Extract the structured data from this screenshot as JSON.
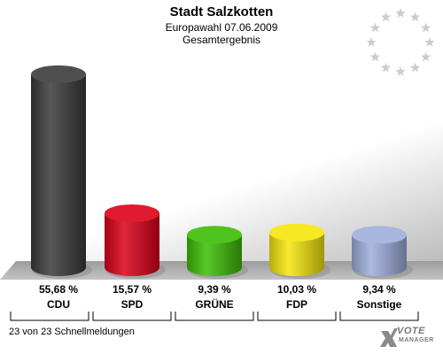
{
  "header": {
    "title": "Stadt Salzkotten",
    "subtitle": "Europawahl 07.06.2009",
    "subsubtitle": "Gesamtergebnis"
  },
  "footer": {
    "reports": "23 von 23 Schnellmeldungen"
  },
  "logo": {
    "line1": "VOTE",
    "line2": "MANAGER",
    "icon": "votemanager-x-icon"
  },
  "emblem": {
    "icon": "eu-stars-icon",
    "star_color": "#c8ccd6"
  },
  "chart_data": {
    "type": "bar",
    "title": "Stadt Salzkotten",
    "categories": [
      "CDU",
      "SPD",
      "GRÜNE",
      "FDP",
      "Sonstige"
    ],
    "values": [
      55.68,
      15.57,
      9.39,
      10.03,
      9.34
    ],
    "value_labels": [
      "55,68 %",
      "15,57 %",
      "9,39 %",
      "10,03 %",
      "9,34 %"
    ],
    "colors": [
      "#3b3b3b",
      "#dd0018",
      "#3dbd05",
      "#f5e60c",
      "#9eaedc"
    ],
    "ylim": [
      0,
      60
    ],
    "grid": false,
    "legend": "none"
  }
}
